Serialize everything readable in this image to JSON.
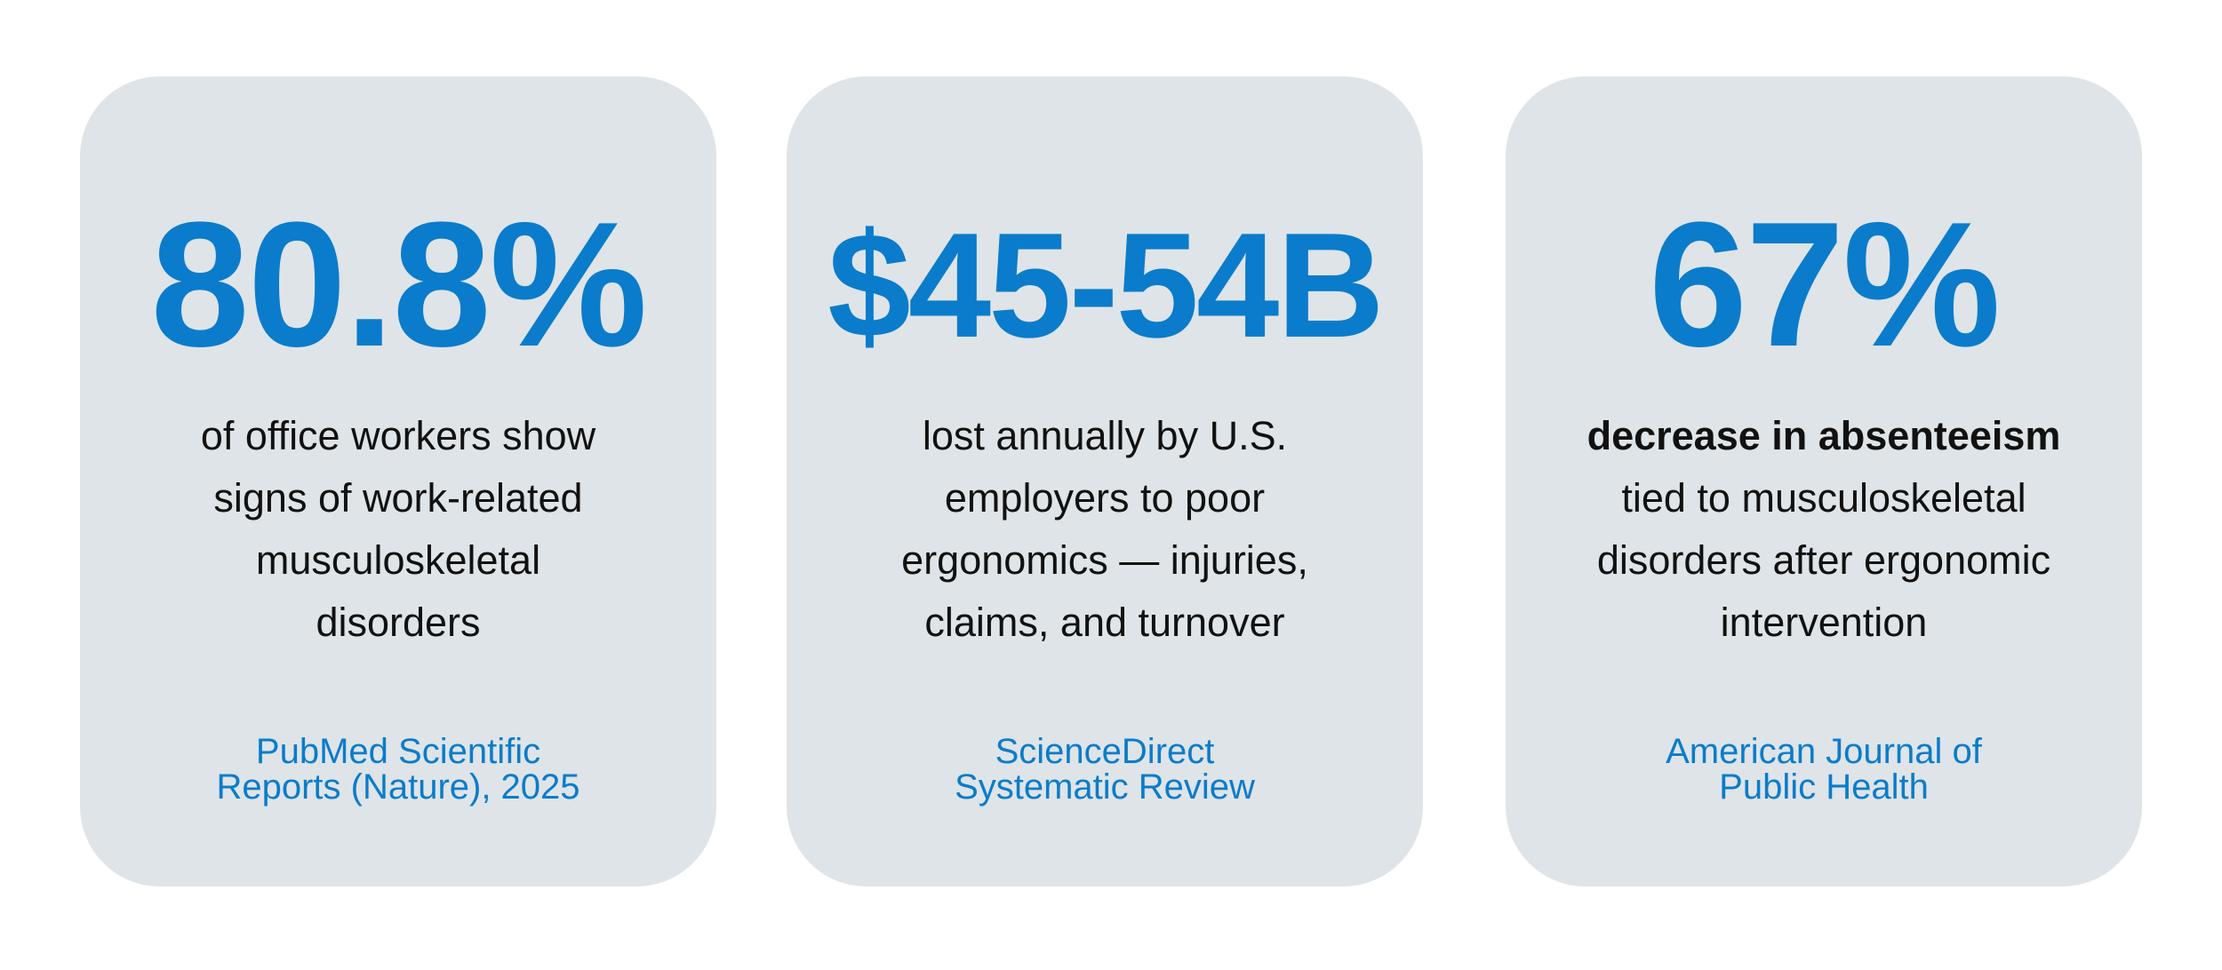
{
  "cards": [
    {
      "stat": "80.8%",
      "description_bold": "",
      "description_lines": [
        "of office workers show",
        "signs of work-related",
        "musculoskeletal",
        "disorders"
      ],
      "source_lines": [
        "PubMed Scientific",
        "Reports (Nature), 2025"
      ]
    },
    {
      "stat": "$45-54B",
      "description_bold": "",
      "description_lines": [
        "lost annually by U.S.",
        "employers to poor",
        "ergonomics — injuries,",
        "claims, and turnover"
      ],
      "source_lines": [
        "ScienceDirect",
        "Systematic Review"
      ]
    },
    {
      "stat": "67%",
      "description_bold": "decrease in absenteeism",
      "description_lines": [
        "tied to musculoskeletal",
        "disorders after ergonomic",
        "intervention"
      ],
      "source_lines": [
        "American Journal of",
        "Public Health"
      ]
    }
  ],
  "colors": {
    "accent": "#0a7ccb",
    "card_background": "#dfe4e8",
    "text": "#111111"
  }
}
